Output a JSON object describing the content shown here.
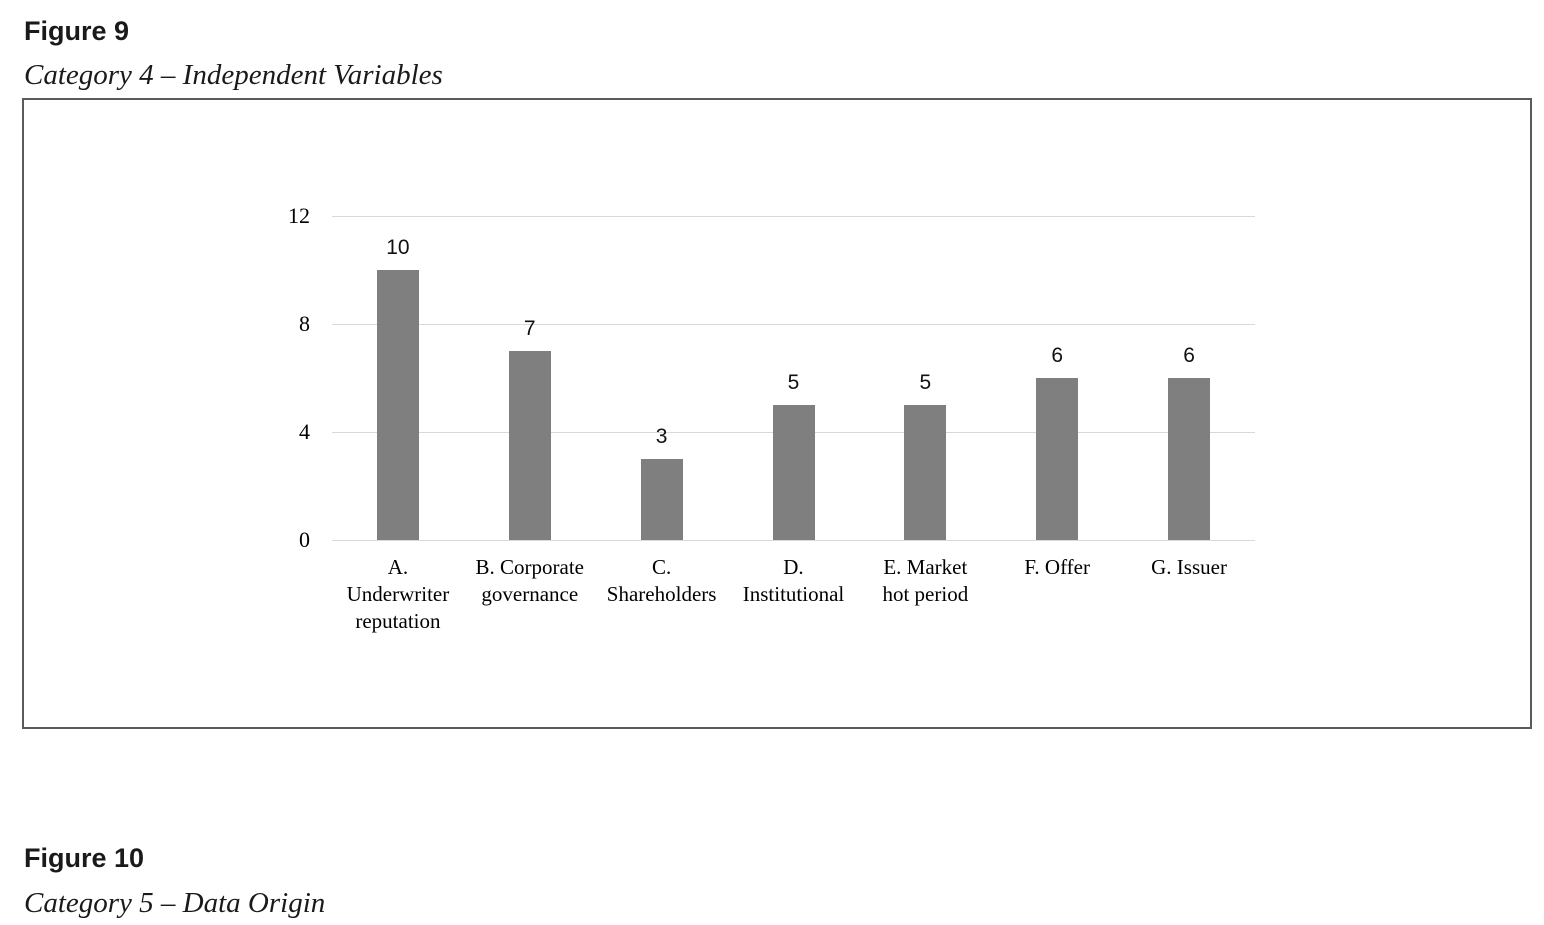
{
  "figures": {
    "fig9": {
      "label": "Figure 9",
      "subtitle": "Category 4 – Independent Variables"
    },
    "fig10": {
      "label": "Figure 10",
      "subtitle": "Category 5 – Data Origin"
    }
  },
  "chart_data": {
    "type": "bar",
    "title": "",
    "xlabel": "",
    "ylabel": "",
    "categories": [
      "A.\nUnderwriter\nreputation",
      "B. Corporate\ngovernance",
      "C.\nShareholders",
      "D.\nInstitutional",
      "E. Market\nhot period",
      "F. Offer",
      "G. Issuer"
    ],
    "values": [
      10,
      7,
      3,
      5,
      5,
      6,
      6
    ],
    "data_labels": [
      "10",
      "7",
      "3",
      "5",
      "5",
      "6",
      "6"
    ],
    "yticks": [
      0,
      4,
      8,
      12
    ],
    "ylim": [
      0,
      12
    ],
    "grid": true,
    "legend": "none",
    "bar_color": "#7f7f7f",
    "gridline_color": "#d9d9d9"
  }
}
